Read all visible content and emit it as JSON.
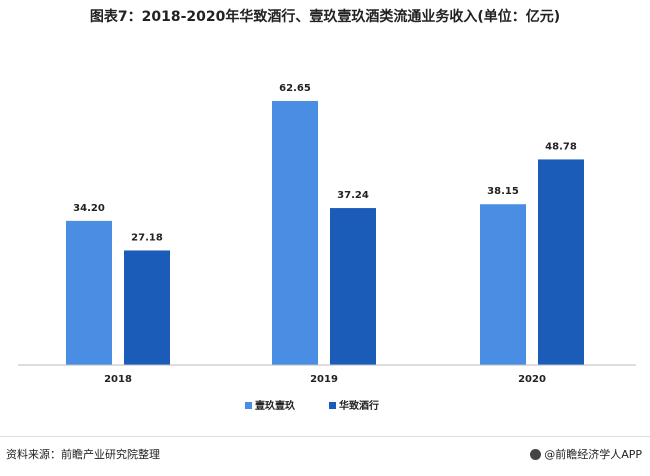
{
  "header": {
    "title": "图表7：2018-2020年华致酒行、壹玖壹玖酒类流通业务收入(单位：亿元)"
  },
  "chart_data": {
    "type": "bar",
    "categories": [
      "2018",
      "2019",
      "2020"
    ],
    "series": [
      {
        "name": "壹玖壹玖",
        "values": [
          34.2,
          62.65,
          38.15
        ],
        "color": "#4a8ee4"
      },
      {
        "name": "华致酒行",
        "values": [
          27.18,
          37.24,
          48.78
        ],
        "color": "#1a5cb8"
      }
    ],
    "value_labels": [
      [
        "34.20",
        "62.65",
        "38.15"
      ],
      [
        "27.18",
        "37.24",
        "48.78"
      ]
    ],
    "ylim": [
      0,
      70
    ],
    "legend_position": "bottom",
    "grid": false
  },
  "footer": {
    "source": "资料来源：前瞻产业研究院整理",
    "brand": "@前瞻经济学人APP"
  }
}
